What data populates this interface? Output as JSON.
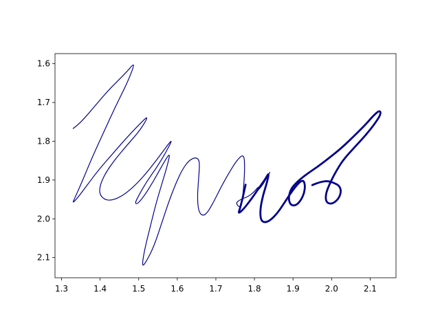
{
  "chart_data": {
    "type": "line",
    "title": "",
    "xlabel": "",
    "ylabel": "",
    "xlim": [
      1.283,
      2.167
    ],
    "ylim": [
      2.152,
      1.574
    ],
    "y_inverted": true,
    "grid": false,
    "legend": "none",
    "xticks": [
      1.3,
      1.4,
      1.5,
      1.6,
      1.7,
      1.8,
      1.9,
      2.0,
      2.1
    ],
    "xtick_labels": [
      "1.3",
      "1.4",
      "1.5",
      "1.6",
      "1.7",
      "1.8",
      "1.9",
      "2.0",
      "2.1"
    ],
    "yticks": [
      1.6,
      1.7,
      1.8,
      1.9,
      2.0,
      2.1
    ],
    "ytick_labels": [
      "1.6",
      "1.7",
      "1.8",
      "1.9",
      "2.0",
      "2.1"
    ],
    "series": [
      {
        "color": "#00008b",
        "width": "thin",
        "points": [
          [
            1.33,
            1.767
          ],
          [
            1.34,
            1.76
          ],
          [
            1.36,
            1.74
          ],
          [
            1.39,
            1.705
          ],
          [
            1.42,
            1.67
          ],
          [
            1.45,
            1.64
          ],
          [
            1.47,
            1.62
          ],
          [
            1.485,
            1.602
          ],
          [
            1.488,
            1.605
          ],
          [
            1.47,
            1.65
          ],
          [
            1.44,
            1.71
          ],
          [
            1.41,
            1.775
          ],
          [
            1.38,
            1.84
          ],
          [
            1.355,
            1.9
          ],
          [
            1.335,
            1.945
          ],
          [
            1.328,
            1.96
          ],
          [
            1.34,
            1.948
          ],
          [
            1.365,
            1.915
          ],
          [
            1.395,
            1.875
          ],
          [
            1.43,
            1.835
          ],
          [
            1.465,
            1.795
          ],
          [
            1.5,
            1.758
          ],
          [
            1.527,
            1.732
          ],
          [
            1.505,
            1.77
          ],
          [
            1.47,
            1.81
          ],
          [
            1.44,
            1.845
          ],
          [
            1.415,
            1.88
          ],
          [
            1.4,
            1.912
          ],
          [
            1.398,
            1.935
          ],
          [
            1.41,
            1.95
          ],
          [
            1.43,
            1.953
          ],
          [
            1.46,
            1.94
          ],
          [
            1.495,
            1.91
          ],
          [
            1.53,
            1.87
          ],
          [
            1.56,
            1.83
          ],
          [
            1.59,
            1.79
          ],
          [
            1.57,
            1.83
          ],
          [
            1.545,
            1.87
          ],
          [
            1.52,
            1.905
          ],
          [
            1.5,
            1.94
          ],
          [
            1.49,
            1.96
          ],
          [
            1.497,
            1.962
          ],
          [
            1.515,
            1.94
          ],
          [
            1.54,
            1.9
          ],
          [
            1.562,
            1.86
          ],
          [
            1.582,
            1.828
          ],
          [
            1.575,
            1.86
          ],
          [
            1.56,
            1.91
          ],
          [
            1.545,
            1.96
          ],
          [
            1.53,
            2.02
          ],
          [
            1.515,
            2.08
          ],
          [
            1.508,
            2.125
          ],
          [
            1.52,
            2.11
          ],
          [
            1.54,
            2.07
          ],
          [
            1.56,
            2.01
          ],
          [
            1.58,
            1.95
          ],
          [
            1.6,
            1.9
          ],
          [
            1.615,
            1.87
          ],
          [
            1.63,
            1.85
          ],
          [
            1.645,
            1.842
          ],
          [
            1.655,
            1.845
          ],
          [
            1.658,
            1.86
          ],
          [
            1.655,
            1.9
          ],
          [
            1.652,
            1.945
          ],
          [
            1.655,
            1.98
          ],
          [
            1.665,
            1.993
          ],
          [
            1.678,
            1.985
          ],
          [
            1.695,
            1.955
          ],
          [
            1.715,
            1.915
          ],
          [
            1.735,
            1.88
          ],
          [
            1.755,
            1.848
          ],
          [
            1.773,
            1.832
          ],
          [
            1.775,
            1.87
          ],
          [
            1.772,
            1.92
          ],
          [
            1.768,
            1.955
          ],
          [
            1.762,
            1.972
          ],
          [
            1.752,
            1.96
          ],
          [
            1.76,
            1.952
          ],
          [
            1.785,
            1.942
          ],
          [
            1.8,
            1.93
          ],
          [
            1.812,
            1.915
          ],
          [
            1.808,
            1.928
          ],
          [
            1.822,
            1.912
          ],
          [
            1.84,
            1.88
          ]
        ]
      },
      {
        "color": "#00008b",
        "width": "thick",
        "points": [
          [
            1.777,
            1.912
          ],
          [
            1.77,
            1.945
          ],
          [
            1.762,
            1.975
          ],
          [
            1.758,
            1.987
          ],
          [
            1.772,
            1.975
          ],
          [
            1.795,
            1.945
          ],
          [
            1.812,
            1.92
          ],
          [
            1.828,
            1.898
          ],
          [
            1.838,
            1.88
          ],
          [
            1.833,
            1.905
          ],
          [
            1.822,
            1.94
          ],
          [
            1.815,
            1.975
          ],
          [
            1.816,
            2.002
          ],
          [
            1.825,
            2.01
          ],
          [
            1.84,
            2.005
          ],
          [
            1.86,
            1.985
          ],
          [
            1.88,
            1.955
          ],
          [
            1.9,
            1.925
          ],
          [
            1.917,
            1.905
          ],
          [
            1.928,
            1.9
          ],
          [
            1.932,
            1.92
          ],
          [
            1.925,
            1.945
          ],
          [
            1.91,
            1.965
          ],
          [
            1.895,
            1.966
          ],
          [
            1.888,
            1.95
          ],
          [
            1.893,
            1.925
          ],
          [
            1.91,
            1.905
          ],
          [
            1.935,
            1.885
          ],
          [
            1.965,
            1.865
          ],
          [
            1.995,
            1.842
          ],
          [
            2.025,
            1.818
          ],
          [
            2.06,
            1.785
          ],
          [
            2.09,
            1.755
          ],
          [
            2.11,
            1.732
          ],
          [
            2.125,
            1.72
          ],
          [
            2.128,
            1.73
          ],
          [
            2.112,
            1.755
          ],
          [
            2.088,
            1.785
          ],
          [
            2.06,
            1.815
          ],
          [
            2.03,
            1.848
          ],
          [
            2.01,
            1.88
          ],
          [
            1.995,
            1.91
          ],
          [
            1.985,
            1.935
          ],
          [
            1.985,
            1.955
          ],
          [
            1.995,
            1.962
          ],
          [
            2.008,
            1.958
          ],
          [
            2.02,
            1.945
          ],
          [
            2.025,
            1.928
          ],
          [
            2.02,
            1.915
          ],
          [
            2.008,
            1.908
          ],
          [
            1.99,
            1.902
          ],
          [
            1.97,
            1.905
          ],
          [
            1.95,
            1.913
          ]
        ]
      }
    ]
  }
}
